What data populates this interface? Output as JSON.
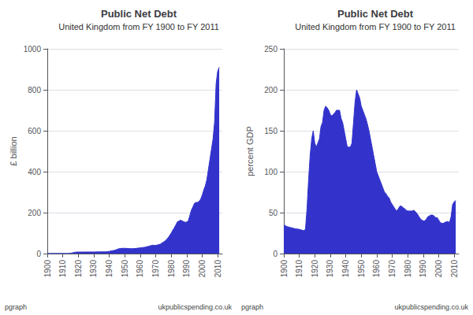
{
  "chart_data": [
    {
      "type": "area",
      "title": "Public Net Debt",
      "subtitle": "United Kingdom from FY 1900 to FY 2011",
      "ylabel": "£ billion",
      "x": [
        1900,
        1901,
        1902,
        1903,
        1904,
        1905,
        1906,
        1907,
        1908,
        1909,
        1910,
        1911,
        1912,
        1913,
        1914,
        1915,
        1916,
        1917,
        1918,
        1919,
        1920,
        1921,
        1922,
        1923,
        1924,
        1925,
        1926,
        1927,
        1928,
        1929,
        1930,
        1931,
        1932,
        1933,
        1934,
        1935,
        1936,
        1937,
        1938,
        1939,
        1940,
        1941,
        1942,
        1943,
        1944,
        1945,
        1946,
        1947,
        1948,
        1949,
        1950,
        1951,
        1952,
        1953,
        1954,
        1955,
        1956,
        1957,
        1958,
        1959,
        1960,
        1961,
        1962,
        1963,
        1964,
        1965,
        1966,
        1967,
        1968,
        1969,
        1970,
        1971,
        1972,
        1973,
        1974,
        1975,
        1976,
        1977,
        1978,
        1979,
        1980,
        1981,
        1982,
        1983,
        1984,
        1985,
        1986,
        1987,
        1988,
        1989,
        1990,
        1991,
        1992,
        1993,
        1994,
        1995,
        1996,
        1997,
        1998,
        1999,
        2000,
        2001,
        2002,
        2003,
        2004,
        2005,
        2006,
        2007,
        2008,
        2009,
        2010,
        2011
      ],
      "values": [
        0.6,
        0.6,
        0.7,
        0.7,
        0.7,
        0.7,
        0.7,
        0.7,
        0.8,
        0.8,
        0.8,
        0.8,
        0.8,
        0.7,
        1.1,
        2.0,
        3.2,
        5.0,
        6.8,
        7.4,
        7.6,
        7.6,
        7.6,
        7.6,
        7.7,
        7.7,
        7.8,
        7.8,
        7.8,
        7.7,
        7.9,
        8.1,
        8.3,
        8.5,
        8.5,
        8.5,
        8.6,
        8.7,
        8.9,
        9.5,
        11.0,
        12.5,
        14.0,
        15.5,
        17.0,
        21.0,
        23.0,
        25.0,
        25.5,
        25.8,
        25.8,
        25.5,
        25.0,
        24.5,
        24.0,
        24.0,
        24.5,
        25.0,
        26.0,
        27.0,
        28.0,
        29.0,
        30.0,
        31.0,
        33.0,
        35.0,
        37.0,
        39.0,
        41.0,
        40.0,
        40.0,
        42.0,
        44.0,
        46.0,
        52.0,
        56.0,
        62.0,
        68.0,
        78.0,
        88.0,
        100.0,
        114.0,
        126.0,
        140.0,
        155.0,
        159.0,
        163.0,
        160.0,
        156.0,
        153.0,
        154.0,
        160.0,
        185.0,
        212.0,
        228.0,
        245.0,
        250.0,
        250.0,
        256.0,
        265.0,
        285.0,
        310.0,
        330.0,
        360.0,
        410.0,
        460.0,
        510.0,
        560.0,
        640.0,
        830.0,
        890.0,
        910.0
      ],
      "color": "#3333cc",
      "xlim": [
        1900,
        2013
      ],
      "xticks": [
        1900,
        1910,
        1920,
        1930,
        1940,
        1950,
        1960,
        1970,
        1980,
        1990,
        2000,
        2010
      ],
      "ylim": [
        0,
        1000
      ],
      "yticks": [
        0,
        200,
        400,
        600,
        800,
        1000
      ],
      "grid": true,
      "annotations": [
        "pgraph",
        "ukpublicspending.co.uk"
      ]
    },
    {
      "type": "area",
      "title": "Public Net Debt",
      "subtitle": "United Kingdom from FY 1900 to FY 2011",
      "ylabel": "percent GDP",
      "x": [
        1900,
        1901,
        1902,
        1903,
        1904,
        1905,
        1906,
        1907,
        1908,
        1909,
        1910,
        1911,
        1912,
        1913,
        1914,
        1915,
        1916,
        1917,
        1918,
        1919,
        1920,
        1921,
        1922,
        1923,
        1924,
        1925,
        1926,
        1927,
        1928,
        1929,
        1930,
        1931,
        1932,
        1933,
        1934,
        1935,
        1936,
        1937,
        1938,
        1939,
        1940,
        1941,
        1942,
        1943,
        1944,
        1945,
        1946,
        1947,
        1948,
        1949,
        1950,
        1951,
        1952,
        1953,
        1954,
        1955,
        1956,
        1957,
        1958,
        1959,
        1960,
        1961,
        1962,
        1963,
        1964,
        1965,
        1966,
        1967,
        1968,
        1969,
        1970,
        1971,
        1972,
        1973,
        1974,
        1975,
        1976,
        1977,
        1978,
        1979,
        1980,
        1981,
        1982,
        1983,
        1984,
        1985,
        1986,
        1987,
        1988,
        1989,
        1990,
        1991,
        1992,
        1993,
        1994,
        1995,
        1996,
        1997,
        1998,
        1999,
        2000,
        2001,
        2002,
        2003,
        2004,
        2005,
        2006,
        2007,
        2008,
        2009,
        2010,
        2011
      ],
      "values": [
        35.0,
        34.0,
        33.0,
        32.5,
        32.0,
        31.5,
        31.0,
        30.5,
        30.0,
        30.0,
        29.5,
        29.0,
        28.5,
        28.0,
        30.0,
        55.0,
        90.0,
        120.0,
        140.0,
        150.0,
        135.0,
        130.0,
        135.0,
        140.0,
        155.0,
        160.0,
        175.0,
        180.0,
        178.0,
        175.0,
        170.0,
        168.0,
        170.0,
        172.0,
        175.0,
        175.0,
        175.0,
        165.0,
        160.0,
        150.0,
        140.0,
        130.0,
        130.0,
        130.0,
        135.0,
        160.0,
        185.0,
        200.0,
        195.0,
        190.0,
        180.0,
        175.0,
        170.0,
        165.0,
        158.0,
        150.0,
        140.0,
        130.0,
        120.0,
        110.0,
        100.0,
        95.0,
        90.0,
        85.0,
        80.0,
        75.0,
        73.0,
        70.0,
        68.0,
        63.0,
        60.0,
        57.0,
        54.0,
        52.0,
        55.0,
        58.0,
        58.0,
        56.0,
        55.0,
        53.0,
        52.0,
        52.0,
        52.0,
        52.0,
        53.0,
        51.0,
        49.0,
        46.0,
        43.0,
        41.0,
        40.0,
        40.0,
        42.0,
        45.0,
        46.0,
        47.0,
        47.0,
        46.0,
        44.0,
        44.0,
        41.0,
        38.0,
        37.0,
        37.0,
        38.0,
        39.0,
        39.0,
        38.0,
        45.0,
        60.0,
        63.0,
        65.0
      ],
      "color": "#3333cc",
      "xlim": [
        1900,
        2013
      ],
      "xticks": [
        1900,
        1910,
        1920,
        1930,
        1940,
        1950,
        1960,
        1970,
        1980,
        1990,
        2000,
        2010
      ],
      "ylim": [
        0,
        250
      ],
      "yticks": [
        0,
        50,
        100,
        150,
        200,
        250
      ],
      "grid": true,
      "annotations": [
        "pgraph",
        "ukpublicspending.co.uk"
      ]
    }
  ]
}
